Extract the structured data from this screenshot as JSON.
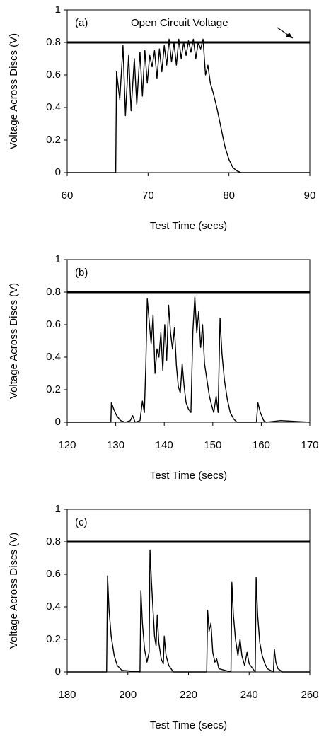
{
  "chart_data": [
    {
      "type": "line",
      "panel_label": "(a)",
      "annotation": "Open Circuit Voltage",
      "x_label": "Test Time (secs)",
      "y_label": "Voltage Across Discs (V)",
      "xlim": [
        60,
        90
      ],
      "xticks": [
        60,
        70,
        80,
        90
      ],
      "ylim": [
        0,
        1
      ],
      "yticks": [
        0,
        0.2,
        0.4,
        0.6,
        0.8,
        1
      ],
      "reference_line": {
        "value": 0.8,
        "color": "#000000"
      },
      "x": [
        60,
        65.9,
        66.0,
        66.1,
        66.5,
        66.9,
        67.2,
        67.6,
        67.9,
        68.3,
        68.6,
        69.0,
        69.3,
        69.6,
        69.9,
        70.2,
        70.5,
        70.8,
        71.1,
        71.4,
        71.7,
        72.0,
        72.3,
        72.6,
        72.9,
        73.2,
        73.5,
        73.8,
        74.1,
        74.4,
        74.7,
        75.0,
        75.3,
        75.6,
        75.9,
        76.2,
        76.5,
        76.8,
        77.1,
        77.4,
        77.7,
        78.0,
        78.5,
        79.0,
        79.5,
        80.0,
        80.5,
        81.0,
        81.5,
        90
      ],
      "series": [
        {
          "color": "#000000",
          "values": [
            0,
            0,
            0,
            0.62,
            0.45,
            0.78,
            0.35,
            0.72,
            0.38,
            0.7,
            0.42,
            0.74,
            0.47,
            0.75,
            0.55,
            0.72,
            0.65,
            0.75,
            0.58,
            0.76,
            0.62,
            0.78,
            0.66,
            0.82,
            0.68,
            0.8,
            0.66,
            0.82,
            0.7,
            0.8,
            0.72,
            0.81,
            0.74,
            0.82,
            0.7,
            0.8,
            0.76,
            0.82,
            0.6,
            0.66,
            0.55,
            0.5,
            0.4,
            0.28,
            0.16,
            0.08,
            0.03,
            0.01,
            0,
            0
          ]
        }
      ]
    },
    {
      "type": "line",
      "panel_label": "(b)",
      "x_label": "Test Time (secs)",
      "y_label": "Voltage Across Discs (V)",
      "xlim": [
        120,
        170
      ],
      "xticks": [
        120,
        130,
        140,
        150,
        160,
        170
      ],
      "ylim": [
        0,
        1
      ],
      "yticks": [
        0,
        0.2,
        0.4,
        0.6,
        0.8,
        1
      ],
      "reference_line": {
        "value": 0.8,
        "color": "#000000"
      },
      "x": [
        120,
        129,
        129.1,
        129.6,
        130.2,
        131,
        132,
        133,
        133.5,
        134,
        135,
        135.5,
        135.9,
        136.2,
        136.5,
        136.9,
        137.3,
        137.7,
        138.1,
        138.5,
        138.9,
        139.3,
        139.7,
        140.1,
        140.5,
        140.9,
        141.3,
        141.7,
        142.1,
        142.5,
        142.9,
        143.3,
        143.7,
        144.1,
        144.5,
        145.0,
        145.5,
        145.9,
        146.3,
        146.7,
        147.1,
        147.5,
        147.9,
        148.3,
        148.8,
        149.3,
        149.8,
        150.2,
        150.7,
        151.1,
        151.5,
        151.9,
        152.4,
        153,
        153.6,
        154.3,
        155,
        159,
        159.3,
        159.8,
        160.5,
        161,
        164,
        170
      ],
      "series": [
        {
          "color": "#000000",
          "values": [
            0,
            0,
            0.12,
            0.08,
            0.04,
            0.01,
            0,
            0.01,
            0.04,
            0,
            0.01,
            0.13,
            0.06,
            0.35,
            0.76,
            0.62,
            0.48,
            0.66,
            0.3,
            0.45,
            0.4,
            0.55,
            0.32,
            0.6,
            0.38,
            0.72,
            0.55,
            0.45,
            0.58,
            0.35,
            0.22,
            0.18,
            0.36,
            0.22,
            0.12,
            0.08,
            0.06,
            0.56,
            0.77,
            0.55,
            0.68,
            0.46,
            0.6,
            0.36,
            0.26,
            0.16,
            0.1,
            0.06,
            0.16,
            0.06,
            0.64,
            0.42,
            0.26,
            0.14,
            0.06,
            0.02,
            0,
            0,
            0.12,
            0.06,
            0.01,
            0,
            0.01,
            0
          ]
        }
      ]
    },
    {
      "type": "line",
      "panel_label": "(c)",
      "x_label": "Test Time (secs)",
      "y_label": "Voltage Across Discs (V)",
      "xlim": [
        180,
        260
      ],
      "xticks": [
        180,
        200,
        220,
        240,
        260
      ],
      "ylim": [
        0,
        1
      ],
      "yticks": [
        0,
        0.2,
        0.4,
        0.6,
        0.8,
        1
      ],
      "reference_line": {
        "value": 0.8,
        "color": "#000000"
      },
      "x": [
        180,
        193,
        193.3,
        193.8,
        194.5,
        195.5,
        196.5,
        198,
        204,
        204.3,
        204.8,
        205.5,
        206.3,
        207.0,
        207.3,
        207.8,
        208.3,
        208.8,
        209.3,
        209.7,
        210.2,
        211,
        211.7,
        212,
        212.6,
        213.5,
        215,
        226,
        226.3,
        226.8,
        227.4,
        228,
        228.7,
        229.3,
        230,
        234,
        234.3,
        234.8,
        235.5,
        236.3,
        237,
        237.6,
        238.5,
        239.3,
        240,
        242,
        242.3,
        242.8,
        243.5,
        244.3,
        245.2,
        246,
        248,
        248.3,
        248.8,
        249.5,
        251,
        260
      ],
      "series": [
        {
          "color": "#000000",
          "values": [
            0,
            0,
            0.59,
            0.38,
            0.22,
            0.1,
            0.04,
            0.01,
            0,
            0.5,
            0.3,
            0.14,
            0.06,
            0.12,
            0.75,
            0.55,
            0.38,
            0.22,
            0.16,
            0.35,
            0.18,
            0.08,
            0.05,
            0.22,
            0.1,
            0.04,
            0,
            0,
            0.38,
            0.25,
            0.3,
            0.12,
            0.06,
            0.08,
            0.02,
            0,
            0.55,
            0.35,
            0.2,
            0.1,
            0.2,
            0.1,
            0.04,
            0.12,
            0.05,
            0,
            0.58,
            0.35,
            0.18,
            0.1,
            0.05,
            0.02,
            0,
            0.14,
            0.06,
            0.02,
            0,
            0
          ]
        }
      ]
    }
  ]
}
